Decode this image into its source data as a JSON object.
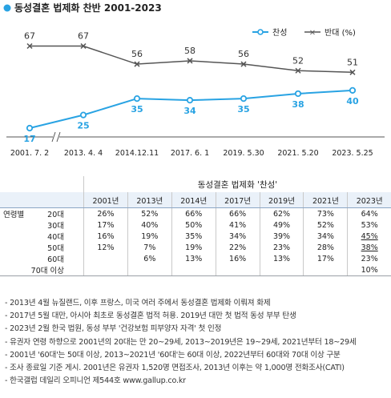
{
  "chart_data": {
    "type": "line",
    "title": "동성결혼 법제화 찬반 2001-2023",
    "categories": [
      "2001. 7. 2",
      "2013. 4. 4",
      "2014.12.11",
      "2017. 6. 1",
      "2019. 5.30",
      "2021. 5.20",
      "2023. 5.25"
    ],
    "series": [
      {
        "name": "찬성",
        "values": [
          17,
          25,
          35,
          34,
          35,
          38,
          40
        ],
        "color": "#29a3e3"
      },
      {
        "name": "반대 (%)",
        "values": [
          67,
          67,
          56,
          58,
          56,
          52,
          51
        ],
        "color": "#555555"
      }
    ],
    "axis_break_after_first": true,
    "legend_position": "top-right",
    "grid": false
  },
  "table": {
    "section_title": "동성결혼 법제화 '찬성'",
    "years": [
      "2001년",
      "2013년",
      "2014년",
      "2017년",
      "2019년",
      "2021년",
      "2023년"
    ],
    "group_label": "연령별",
    "rows": [
      {
        "age": "20대",
        "values": [
          "26%",
          "52%",
          "66%",
          "66%",
          "62%",
          "73%",
          "64%"
        ],
        "underline_last": false
      },
      {
        "age": "30대",
        "values": [
          "17%",
          "40%",
          "50%",
          "41%",
          "49%",
          "52%",
          "53%"
        ],
        "underline_last": false
      },
      {
        "age": "40대",
        "values": [
          "16%",
          "19%",
          "35%",
          "34%",
          "39%",
          "34%",
          "45%"
        ],
        "underline_last": true
      },
      {
        "age": "50대",
        "values": [
          "12%",
          "7%",
          "19%",
          "22%",
          "23%",
          "28%",
          "38%"
        ],
        "underline_last": true
      },
      {
        "age": "60대",
        "values": [
          "",
          "6%",
          "13%",
          "16%",
          "13%",
          "17%",
          "23%"
        ],
        "underline_last": false
      },
      {
        "age": "70대 이상",
        "values": [
          "",
          "",
          "",
          "",
          "",
          "",
          "10%"
        ],
        "underline_last": false
      }
    ]
  },
  "notes": [
    "- 2013년 4월 뉴질랜드, 이후 프랑스, 미국 여러 주에서 동성결혼 법제화 이뤄져 화제",
    "- 2017년 5월 대만, 아시아 최초로 동성결혼 법적 허용. 2019년 대만 첫 법적 동성 부부 탄생",
    "- 2023년 2월 한국 법원, 동성 부부 '건강보험 피부양자 자격' 첫 인정",
    "- 유권자 연령 하향으로 2001년의 20대는 만 20~29세, 2013~2019년은 19~29세, 2021년부터 18~29세",
    "- 2001년 '60대'는 50대 이상, 2013~2021년 '60대'는 60대 이상, 2022년부터 60대와 70대 이상 구분",
    "- 조사 종료일 기준 게시. 2001년은 유권자 1,520명 면접조사, 2013년 이후는 약 1,000명 전화조사(CATI)",
    "- 한국갤럽 데일리 오피니언 제544호 www.gallup.co.kr"
  ]
}
